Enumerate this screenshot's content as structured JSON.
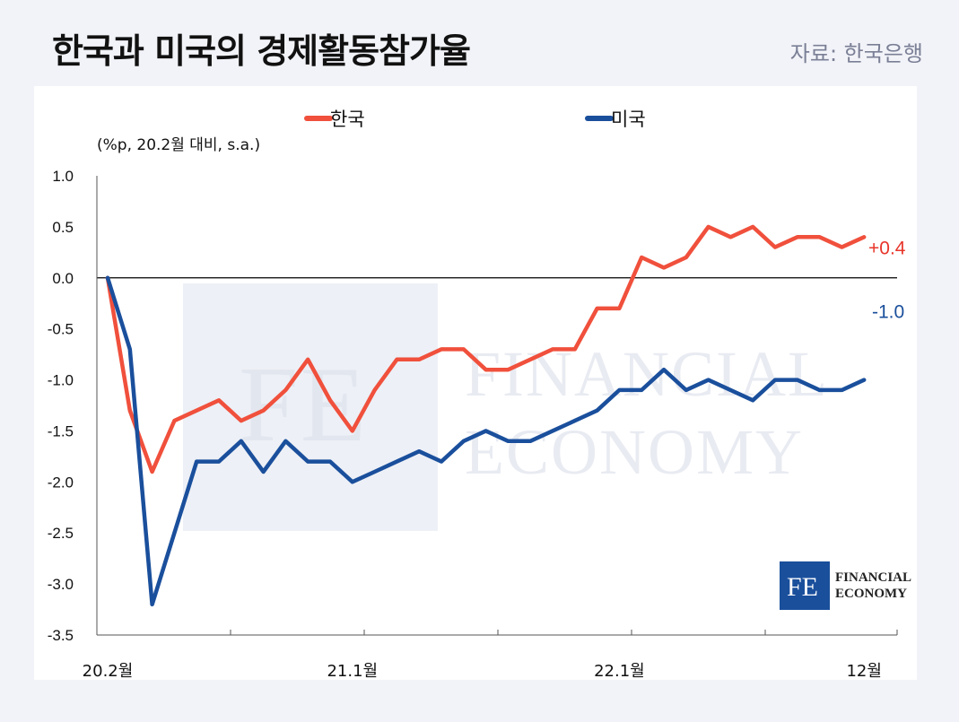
{
  "header": {
    "title": "한국과 미국의 경제활동참가율",
    "source": "자료: 한국은행"
  },
  "watermark": {
    "lines": [
      "FINANCIAL",
      "ECONOMY"
    ],
    "mark": "FE"
  },
  "logo": {
    "mark": "FE",
    "line1": "FINANCIAL",
    "line2": "ECONOMY",
    "color": "#1a4f9c"
  },
  "chart_data": {
    "type": "line",
    "unit_label": "(%p, 20.2월 대비, s.a.)",
    "ylim": [
      -3.5,
      1.0
    ],
    "yticks": [
      "1.0",
      "0.5",
      "0.0",
      "-0.5",
      "-1.0",
      "-1.5",
      "-2.0",
      "-2.5",
      "-3.0",
      "-3.5"
    ],
    "ytick_values": [
      1.0,
      0.5,
      0.0,
      -0.5,
      -1.0,
      -1.5,
      -2.0,
      -2.5,
      -3.0,
      -3.5
    ],
    "x": [
      "20.2",
      "20.3",
      "20.4",
      "20.5",
      "20.6",
      "20.7",
      "20.8",
      "20.9",
      "20.10",
      "20.11",
      "20.12",
      "21.1",
      "21.2",
      "21.3",
      "21.4",
      "21.5",
      "21.6",
      "21.7",
      "21.8",
      "21.9",
      "21.10",
      "21.11",
      "21.12",
      "22.1",
      "22.2",
      "22.3",
      "22.4",
      "22.5",
      "22.6",
      "22.7",
      "22.8",
      "22.9",
      "22.10",
      "22.11",
      "22.12"
    ],
    "xtick_labels": [
      {
        "label": "20.2월",
        "index": 0
      },
      {
        "label": "21.1월",
        "index": 11
      },
      {
        "label": "22.1월",
        "index": 23
      },
      {
        "label": "12월",
        "index": 34
      }
    ],
    "series": [
      {
        "name": "한국",
        "color": "#f0503c",
        "values": [
          0.0,
          -1.3,
          -1.9,
          -1.4,
          -1.3,
          -1.2,
          -1.4,
          -1.3,
          -1.1,
          -0.8,
          -1.2,
          -1.5,
          -1.1,
          -0.8,
          -0.8,
          -0.7,
          -0.7,
          -0.9,
          -0.9,
          -0.8,
          -0.7,
          -0.7,
          -0.3,
          -0.3,
          0.2,
          0.1,
          0.2,
          0.5,
          0.4,
          0.5,
          0.3,
          0.4,
          0.4,
          0.3,
          0.4
        ],
        "end_label": "+0.4"
      },
      {
        "name": "미국",
        "color": "#1a4f9c",
        "values": [
          0.0,
          -0.7,
          -3.2,
          -2.5,
          -1.8,
          -1.8,
          -1.6,
          -1.9,
          -1.6,
          -1.8,
          -1.8,
          -2.0,
          -1.9,
          -1.8,
          -1.7,
          -1.8,
          -1.6,
          -1.5,
          -1.6,
          -1.6,
          -1.5,
          -1.4,
          -1.3,
          -1.1,
          -1.1,
          -0.9,
          -1.1,
          -1.0,
          -1.1,
          -1.2,
          -1.0,
          -1.0,
          -1.1,
          -1.1,
          -1.0
        ],
        "end_label": "-1.0"
      }
    ],
    "grid": false,
    "legend": "top"
  }
}
